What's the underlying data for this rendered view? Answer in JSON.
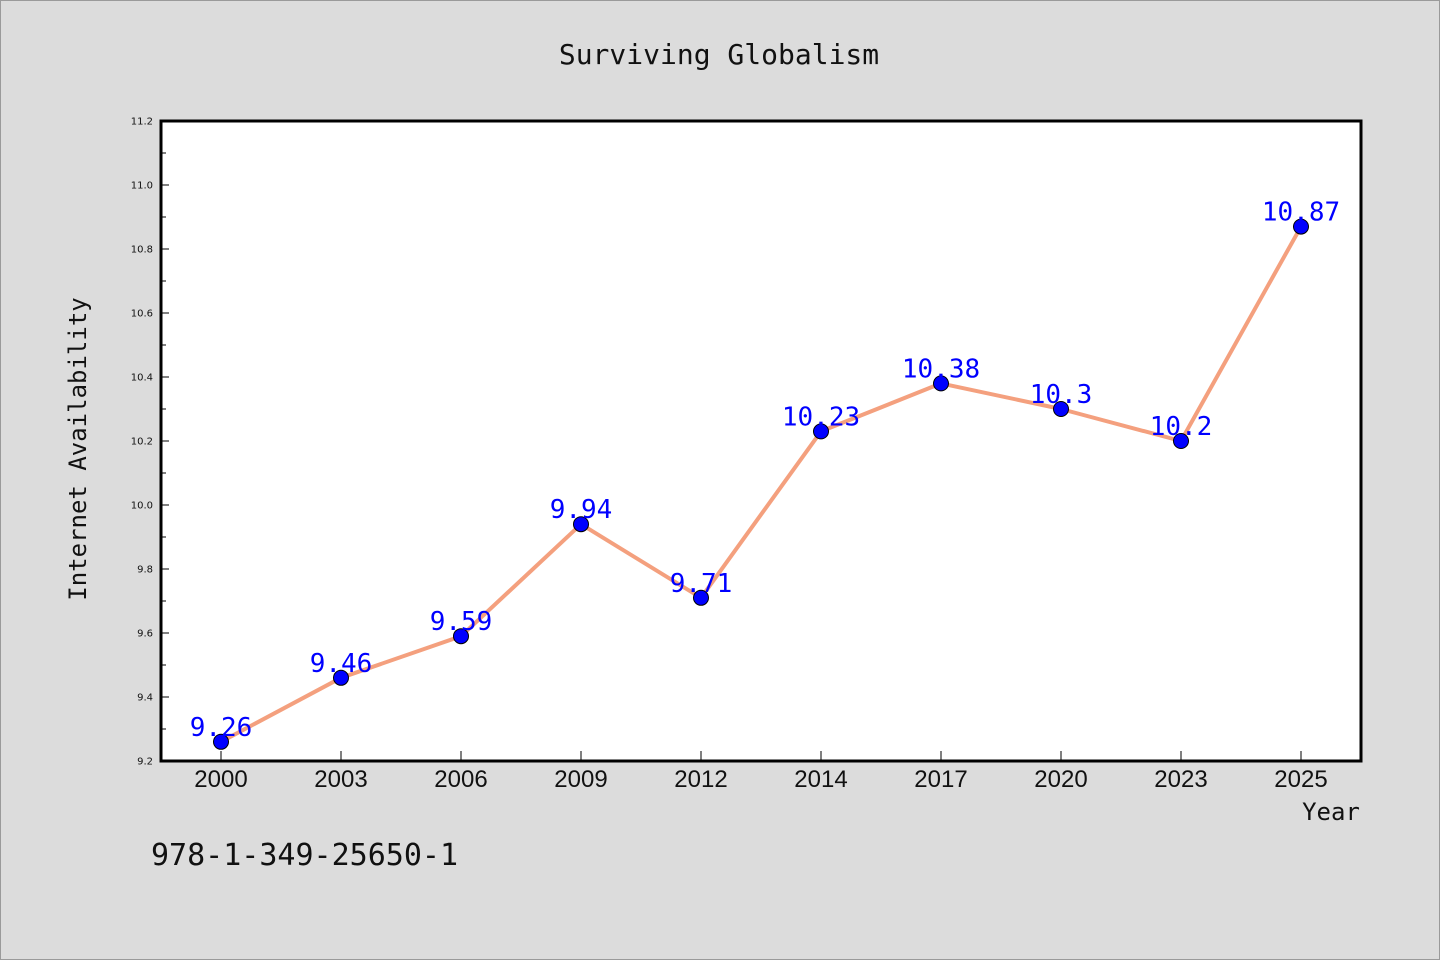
{
  "chart_data": {
    "type": "line",
    "title": "Surviving Globalism",
    "xlabel": "Year",
    "ylabel": "Internet Availability",
    "categories": [
      "2000",
      "2003",
      "2006",
      "2009",
      "2012",
      "2014",
      "2017",
      "2020",
      "2023",
      "2025"
    ],
    "series": [
      {
        "values": [
          9.26,
          9.46,
          9.59,
          9.94,
          9.71,
          10.23,
          10.38,
          10.3,
          10.2,
          10.87
        ]
      }
    ],
    "data_labels": [
      "9.26",
      "9.46",
      "9.59",
      "9.94",
      "9.71",
      "10.23",
      "10.38",
      "10.3",
      "10.2",
      "10.87"
    ],
    "ylim": [
      9.2,
      11.2
    ],
    "yticks": [
      "9.2",
      "9.4",
      "9.6",
      "9.8",
      "10.0",
      "10.2",
      "10.4",
      "10.6",
      "10.8",
      "11.0",
      "11.2"
    ],
    "grid": false,
    "legend": "none"
  },
  "footer": {
    "isbn": "978-1-349-25650-1"
  },
  "colors": {
    "background": "#dcdcdc",
    "plot_area": "#ffffff",
    "line": "#f4a07e",
    "marker": "#0000ff",
    "data_label": "#0000ff"
  }
}
